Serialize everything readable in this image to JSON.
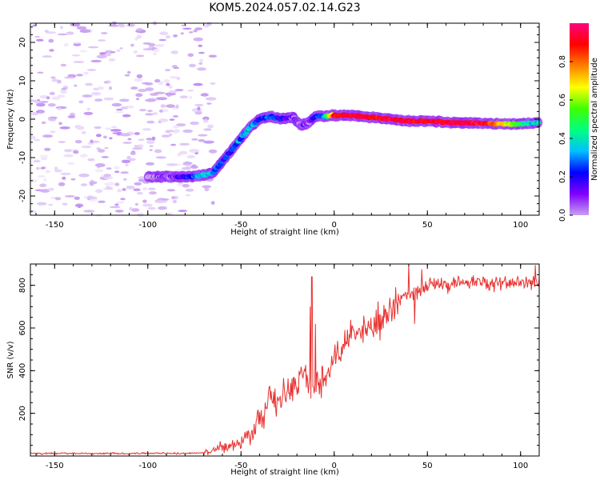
{
  "figure": {
    "title": "KOM5.2024.057.02.14.G23"
  },
  "chart_data": [
    {
      "type": "heatmap",
      "panel": "spectrogram",
      "xlabel": "Height of straight line (km)",
      "ylabel": "Frequency (Hz)",
      "xlim": [
        -163,
        110
      ],
      "ylim": [
        -25,
        25
      ],
      "xticks": [
        -150,
        -100,
        -50,
        0,
        50,
        100
      ],
      "yticks": [
        -20,
        -10,
        0,
        10,
        20
      ],
      "colorbar": {
        "label": "Normalized spectral amplitude",
        "range": [
          0,
          1
        ],
        "ticks": [
          "0.0",
          "0.2",
          "0.4",
          "0.6",
          "0.8"
        ],
        "colormap": [
          "#ffffff",
          "#c8a0f0",
          "#8000ff",
          "#0000ff",
          "#00c0ff",
          "#00ff80",
          "#40ff00",
          "#ffff00",
          "#ff8000",
          "#ff0000",
          "#ff0080"
        ]
      },
      "ridge": {
        "x": [
          -100,
          -85,
          -75,
          -70,
          -65,
          -60,
          -55,
          -50,
          -45,
          -40,
          -35,
          -30,
          -25,
          -22,
          -18,
          -14,
          -10,
          -5,
          0,
          10,
          20,
          30,
          40,
          50,
          60,
          70,
          80,
          90,
          100,
          110
        ],
        "y": [
          -15,
          -15,
          -15,
          -14.5,
          -14,
          -11,
          -8,
          -5,
          -2,
          0,
          0.8,
          0.2,
          0.3,
          0.5,
          -1.5,
          -1.0,
          0.8,
          0.8,
          1.0,
          1.0,
          0.5,
          0.0,
          -0.5,
          -0.5,
          -0.8,
          -1.0,
          -1.0,
          -1.2,
          -1.3,
          -1.0
        ],
        "amplitude": [
          0.12,
          0.2,
          0.3,
          0.45,
          0.4,
          0.3,
          0.3,
          0.35,
          0.4,
          0.3,
          0.35,
          0.3,
          0.25,
          0.2,
          0.15,
          0.15,
          0.25,
          0.4,
          0.9,
          0.95,
          0.9,
          0.95,
          0.95,
          0.92,
          0.95,
          0.95,
          0.9,
          0.75,
          0.55,
          0.4
        ]
      },
      "noise_region": {
        "x_range": [
          -163,
          -65
        ],
        "y_range": [
          -25,
          25
        ],
        "amplitude_range": [
          0.02,
          0.12
        ]
      }
    },
    {
      "type": "line",
      "panel": "snr",
      "xlabel": "Height of straight line (km)",
      "ylabel": "SNR (v/v)",
      "xlim": [
        -163,
        110
      ],
      "ylim": [
        0,
        900
      ],
      "xticks": [
        -150,
        -100,
        -50,
        0,
        50,
        100
      ],
      "yticks": [
        200,
        400,
        600,
        800
      ],
      "series": [
        {
          "color": "#e8312f",
          "anchors": {
            "x": [
              -163,
              -80,
              -70,
              -60,
              -50,
              -45,
              -40,
              -35,
              -30,
              -25,
              -20,
              -15,
              -12,
              -8,
              -5,
              0,
              10,
              20,
              30,
              40,
              45,
              50,
              60,
              70,
              80,
              90,
              100,
              110
            ],
            "y": [
              12,
              12,
              15,
              40,
              60,
              90,
              180,
              250,
              260,
              310,
              330,
              380,
              300,
              340,
              370,
              480,
              560,
              620,
              690,
              770,
              760,
              800,
              810,
              810,
              815,
              810,
              820,
              820
            ]
          },
          "spikes": [
            {
              "x": -12,
              "y": 840
            },
            {
              "x": -13,
              "y": 700
            },
            {
              "x": -10,
              "y": 620
            },
            {
              "x": 40,
              "y": 895
            },
            {
              "x": 43,
              "y": 620
            },
            {
              "x": 47,
              "y": 875
            },
            {
              "x": 108,
              "y": 895
            }
          ]
        }
      ]
    }
  ]
}
